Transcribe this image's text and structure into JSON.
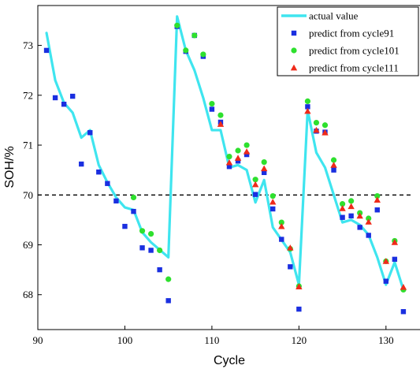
{
  "chart_data": {
    "type": "line",
    "xlabel": "Cycle",
    "ylabel": "SOH/%",
    "xlim": [
      90,
      134
    ],
    "ylim": [
      67.3,
      73.8
    ],
    "x_ticks": [
      90,
      100,
      110,
      120,
      130
    ],
    "y_ticks": [
      68,
      69,
      70,
      71,
      72,
      73
    ],
    "grid": false,
    "legend_position": "top-right",
    "reference_line": {
      "y": 70,
      "style": "dashed"
    },
    "series": [
      {
        "name": "actual value",
        "kind": "line",
        "color": "#3fe5ef",
        "x": [
          91,
          92,
          93,
          94,
          95,
          96,
          97,
          98,
          99,
          100,
          101,
          102,
          103,
          104,
          105,
          106,
          107,
          108,
          109,
          110,
          111,
          112,
          113,
          114,
          115,
          116,
          117,
          118,
          119,
          120,
          121,
          122,
          123,
          124,
          125,
          126,
          127,
          128,
          129,
          130,
          131,
          132
        ],
        "y": [
          73.25,
          72.3,
          71.85,
          71.65,
          71.15,
          71.3,
          70.6,
          70.25,
          69.95,
          69.75,
          69.7,
          69.25,
          69.05,
          68.9,
          68.75,
          73.58,
          72.9,
          72.5,
          71.95,
          71.3,
          71.3,
          70.55,
          70.6,
          70.5,
          69.85,
          70.3,
          69.35,
          69.1,
          68.85,
          68.2,
          71.7,
          70.85,
          70.55,
          70.0,
          69.45,
          69.5,
          69.4,
          69.2,
          68.75,
          68.2,
          68.65,
          68.1
        ]
      },
      {
        "name": "predict from cycle91",
        "kind": "square",
        "color": "#1a2fe0",
        "x": [
          91,
          92,
          93,
          94,
          95,
          96,
          97,
          98,
          99,
          100,
          101,
          102,
          103,
          104,
          105,
          106,
          107,
          108,
          109,
          110,
          111,
          112,
          113,
          114,
          115,
          116,
          117,
          118,
          119,
          120,
          121,
          122,
          123,
          124,
          125,
          126,
          127,
          128,
          129,
          130,
          131,
          132
        ],
        "y": [
          72.9,
          71.95,
          71.82,
          71.98,
          70.62,
          71.25,
          70.46,
          70.23,
          69.88,
          69.37,
          69.67,
          68.94,
          68.89,
          68.5,
          67.88,
          73.38,
          72.88,
          73.2,
          72.78,
          71.72,
          71.46,
          70.57,
          70.68,
          70.81,
          70.01,
          70.45,
          69.72,
          69.11,
          68.56,
          67.71,
          71.77,
          71.28,
          71.26,
          70.5,
          69.55,
          69.58,
          69.35,
          69.19,
          69.7,
          68.27,
          68.71,
          67.66
        ]
      },
      {
        "name": "predict from cycle101",
        "kind": "circle",
        "color": "#2ee02e",
        "x": [
          101,
          102,
          103,
          104,
          105,
          106,
          107,
          108,
          109,
          110,
          111,
          112,
          113,
          114,
          115,
          116,
          117,
          118,
          119,
          120,
          121,
          122,
          123,
          124,
          125,
          126,
          127,
          128,
          129,
          130,
          131,
          132
        ],
        "y": [
          69.95,
          69.28,
          69.22,
          68.89,
          68.31,
          73.4,
          72.9,
          73.2,
          72.82,
          71.83,
          71.6,
          70.77,
          70.89,
          71.0,
          70.31,
          70.66,
          69.98,
          69.45,
          68.92,
          68.17,
          71.88,
          71.45,
          71.4,
          70.7,
          69.82,
          69.88,
          69.64,
          69.53,
          69.98,
          68.67,
          69.08,
          68.1
        ]
      },
      {
        "name": "predict from cycle111",
        "kind": "triangle",
        "color": "#ef2a1a",
        "x": [
          111,
          112,
          113,
          114,
          115,
          116,
          117,
          118,
          119,
          120,
          121,
          122,
          123,
          124,
          125,
          126,
          127,
          128,
          129,
          130,
          131,
          132
        ],
        "y": [
          71.42,
          70.65,
          70.74,
          70.87,
          70.21,
          70.53,
          69.86,
          69.37,
          68.94,
          68.16,
          71.68,
          71.3,
          71.25,
          70.6,
          69.73,
          69.77,
          69.58,
          69.46,
          69.9,
          68.67,
          69.05,
          68.15
        ]
      }
    ]
  }
}
